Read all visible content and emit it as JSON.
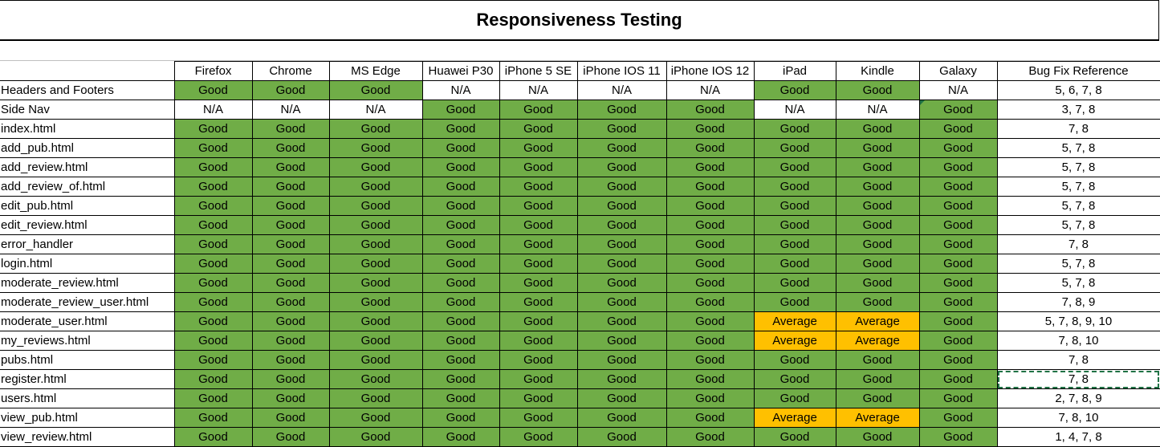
{
  "sheet": {
    "title": "Responsiveness Testing",
    "columns": [
      "Firefox",
      "Chrome",
      "MS Edge",
      "Huawei P30",
      "iPhone 5 SE",
      "iPhone IOS 11",
      "iPhone IOS 12",
      "iPad",
      "Kindle",
      "Galaxy",
      "Bug Fix Reference"
    ],
    "rows": [
      {
        "label": "Headers and Footers",
        "cells": [
          "Good",
          "Good",
          "Good",
          "N/A",
          "N/A",
          "N/A",
          "N/A",
          "Good",
          "Good",
          "N/A"
        ],
        "ref": "5, 6, 7, 8"
      },
      {
        "label": "Side Nav",
        "cells": [
          "N/A",
          "N/A",
          "N/A",
          "Good",
          "Good",
          "Good",
          "Good",
          "N/A",
          "N/A",
          "Good"
        ],
        "ref": "3, 7, 8"
      },
      {
        "label": "index.html",
        "cells": [
          "Good",
          "Good",
          "Good",
          "Good",
          "Good",
          "Good",
          "Good",
          "Good",
          "Good",
          "Good"
        ],
        "ref": "7, 8"
      },
      {
        "label": "add_pub.html",
        "cells": [
          "Good",
          "Good",
          "Good",
          "Good",
          "Good",
          "Good",
          "Good",
          "Good",
          "Good",
          "Good"
        ],
        "ref": "5, 7, 8"
      },
      {
        "label": "add_review.html",
        "cells": [
          "Good",
          "Good",
          "Good",
          "Good",
          "Good",
          "Good",
          "Good",
          "Good",
          "Good",
          "Good"
        ],
        "ref": "5, 7, 8"
      },
      {
        "label": "add_review_of.html",
        "cells": [
          "Good",
          "Good",
          "Good",
          "Good",
          "Good",
          "Good",
          "Good",
          "Good",
          "Good",
          "Good"
        ],
        "ref": "5, 7, 8"
      },
      {
        "label": "edit_pub.html",
        "cells": [
          "Good",
          "Good",
          "Good",
          "Good",
          "Good",
          "Good",
          "Good",
          "Good",
          "Good",
          "Good"
        ],
        "ref": "5, 7, 8"
      },
      {
        "label": "edit_review.html",
        "cells": [
          "Good",
          "Good",
          "Good",
          "Good",
          "Good",
          "Good",
          "Good",
          "Good",
          "Good",
          "Good"
        ],
        "ref": "5, 7, 8"
      },
      {
        "label": "error_handler",
        "cells": [
          "Good",
          "Good",
          "Good",
          "Good",
          "Good",
          "Good",
          "Good",
          "Good",
          "Good",
          "Good"
        ],
        "ref": "7, 8"
      },
      {
        "label": "login.html",
        "cells": [
          "Good",
          "Good",
          "Good",
          "Good",
          "Good",
          "Good",
          "Good",
          "Good",
          "Good",
          "Good"
        ],
        "ref": "5, 7, 8"
      },
      {
        "label": "moderate_review.html",
        "cells": [
          "Good",
          "Good",
          "Good",
          "Good",
          "Good",
          "Good",
          "Good",
          "Good",
          "Good",
          "Good"
        ],
        "ref": "5, 7, 8"
      },
      {
        "label": "moderate_review_user.html",
        "cells": [
          "Good",
          "Good",
          "Good",
          "Good",
          "Good",
          "Good",
          "Good",
          "Good",
          "Good",
          "Good"
        ],
        "ref": "7, 8, 9"
      },
      {
        "label": "moderate_user.html",
        "cells": [
          "Good",
          "Good",
          "Good",
          "Good",
          "Good",
          "Good",
          "Good",
          "Average",
          "Average",
          "Good"
        ],
        "ref": "5, 7, 8, 9, 10"
      },
      {
        "label": "my_reviews.html",
        "cells": [
          "Good",
          "Good",
          "Good",
          "Good",
          "Good",
          "Good",
          "Good",
          "Average",
          "Average",
          "Good"
        ],
        "ref": "7, 8, 10"
      },
      {
        "label": "pubs.html",
        "cells": [
          "Good",
          "Good",
          "Good",
          "Good",
          "Good",
          "Good",
          "Good",
          "Good",
          "Good",
          "Good"
        ],
        "ref": "7, 8"
      },
      {
        "label": "register.html",
        "cells": [
          "Good",
          "Good",
          "Good",
          "Good",
          "Good",
          "Good",
          "Good",
          "Good",
          "Good",
          "Good"
        ],
        "ref": "7, 8"
      },
      {
        "label": "users.html",
        "cells": [
          "Good",
          "Good",
          "Good",
          "Good",
          "Good",
          "Good",
          "Good",
          "Good",
          "Good",
          "Good"
        ],
        "ref": "2, 7, 8, 9"
      },
      {
        "label": "view_pub.html",
        "cells": [
          "Good",
          "Good",
          "Good",
          "Good",
          "Good",
          "Good",
          "Good",
          "Average",
          "Average",
          "Good"
        ],
        "ref": "7, 8, 10"
      },
      {
        "label": "view_review.html",
        "cells": [
          "Good",
          "Good",
          "Good",
          "Good",
          "Good",
          "Good",
          "Good",
          "Good",
          "Good",
          "Good"
        ],
        "ref": "1, 4, 7, 8"
      }
    ],
    "selected_cell": {
      "row": 15,
      "column": "Bug Fix Reference"
    },
    "colors": {
      "good": "#70ad47",
      "average": "#ffc000",
      "na": "#ffffff",
      "selection": "#217346"
    }
  }
}
